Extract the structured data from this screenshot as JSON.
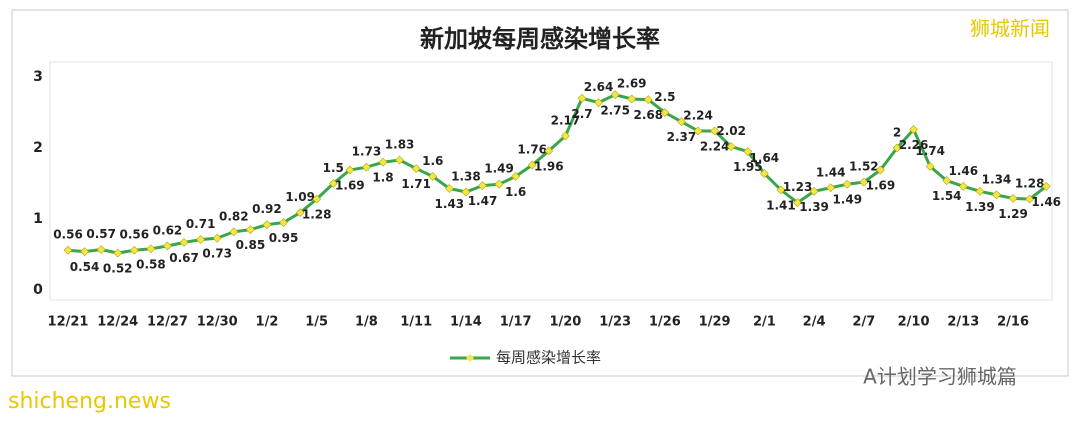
{
  "chart_data": {
    "type": "line",
    "title": "新加坡每周感染增长率",
    "categories": [
      "12/21",
      null,
      null,
      "12/24",
      null,
      null,
      "12/27",
      null,
      null,
      "12/30",
      null,
      null,
      "1/2",
      null,
      null,
      "1/5",
      null,
      null,
      "1/8",
      null,
      null,
      "1/11",
      null,
      null,
      "1/14",
      null,
      null,
      "1/17",
      null,
      null,
      "1/20",
      null,
      null,
      "1/23",
      null,
      null,
      "1/26",
      null,
      null,
      "1/29",
      null,
      null,
      "2/1",
      null,
      null,
      "2/4",
      null,
      null,
      "2/7",
      null,
      null,
      "2/10",
      null,
      null,
      "2/13",
      null,
      null,
      "2/16",
      null,
      null
    ],
    "series": [
      {
        "name": "每周感染增长率",
        "color": "#3aa64a",
        "marker_color": "#f2e64a",
        "values": [
          0.56,
          0.54,
          0.57,
          0.52,
          0.56,
          0.58,
          0.62,
          0.67,
          0.71,
          0.73,
          0.82,
          0.85,
          0.92,
          0.95,
          1.09,
          1.28,
          1.5,
          1.69,
          1.73,
          1.8,
          1.83,
          1.71,
          1.6,
          1.43,
          1.38,
          1.47,
          1.49,
          1.6,
          1.76,
          1.96,
          2.17,
          2.7,
          2.64,
          2.75,
          2.69,
          2.68,
          2.5,
          2.37,
          2.24,
          2.24,
          2.02,
          1.95,
          1.64,
          1.41,
          1.23,
          1.39,
          1.44,
          1.49,
          1.52,
          1.69,
          2,
          2.26,
          1.74,
          1.54,
          1.46,
          1.39,
          1.34,
          1.29,
          1.28,
          1.46
        ]
      }
    ],
    "ylim": [
      0,
      3
    ],
    "yticks": [
      0,
      1,
      2,
      3
    ],
    "grid": false,
    "legend": "bottom"
  },
  "watermarks": {
    "top_right": "狮城新闻",
    "bottom_left": "shicheng.news",
    "bottom_right": "A计划学习狮城篇"
  }
}
